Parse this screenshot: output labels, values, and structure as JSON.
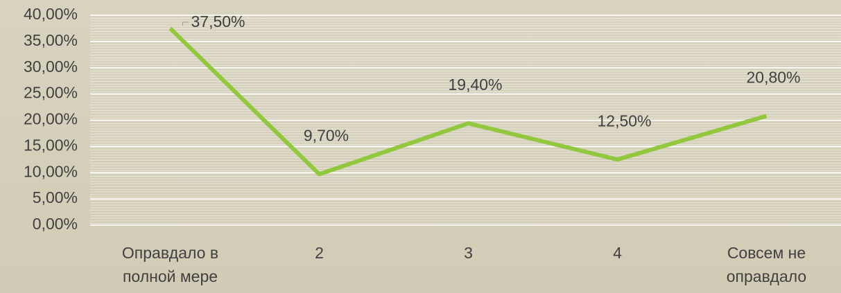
{
  "chart_data": {
    "type": "line",
    "categories": [
      "Оправдало в полной мере",
      "2",
      "3",
      "4",
      "Совсем не оправдало"
    ],
    "series": [
      {
        "color": "#92c83e",
        "values": [
          37.5,
          9.7,
          19.4,
          12.5,
          20.8
        ],
        "value_labels": [
          "37,50%",
          "9,70%",
          "19,40%",
          "12,50%",
          "20,80%"
        ]
      }
    ],
    "ylim": [
      0,
      40
    ],
    "yticks": [
      {
        "value": 0,
        "label": "0,00%"
      },
      {
        "value": 5,
        "label": "5,00%"
      },
      {
        "value": 10,
        "label": "10,00%"
      },
      {
        "value": 15,
        "label": "15,00%"
      },
      {
        "value": 20,
        "label": "20,00%"
      },
      {
        "value": 25,
        "label": "25,00%"
      },
      {
        "value": 30,
        "label": "30,00%"
      },
      {
        "value": 35,
        "label": "35,00%"
      },
      {
        "value": 40,
        "label": "40,00%"
      }
    ],
    "grid": true
  }
}
